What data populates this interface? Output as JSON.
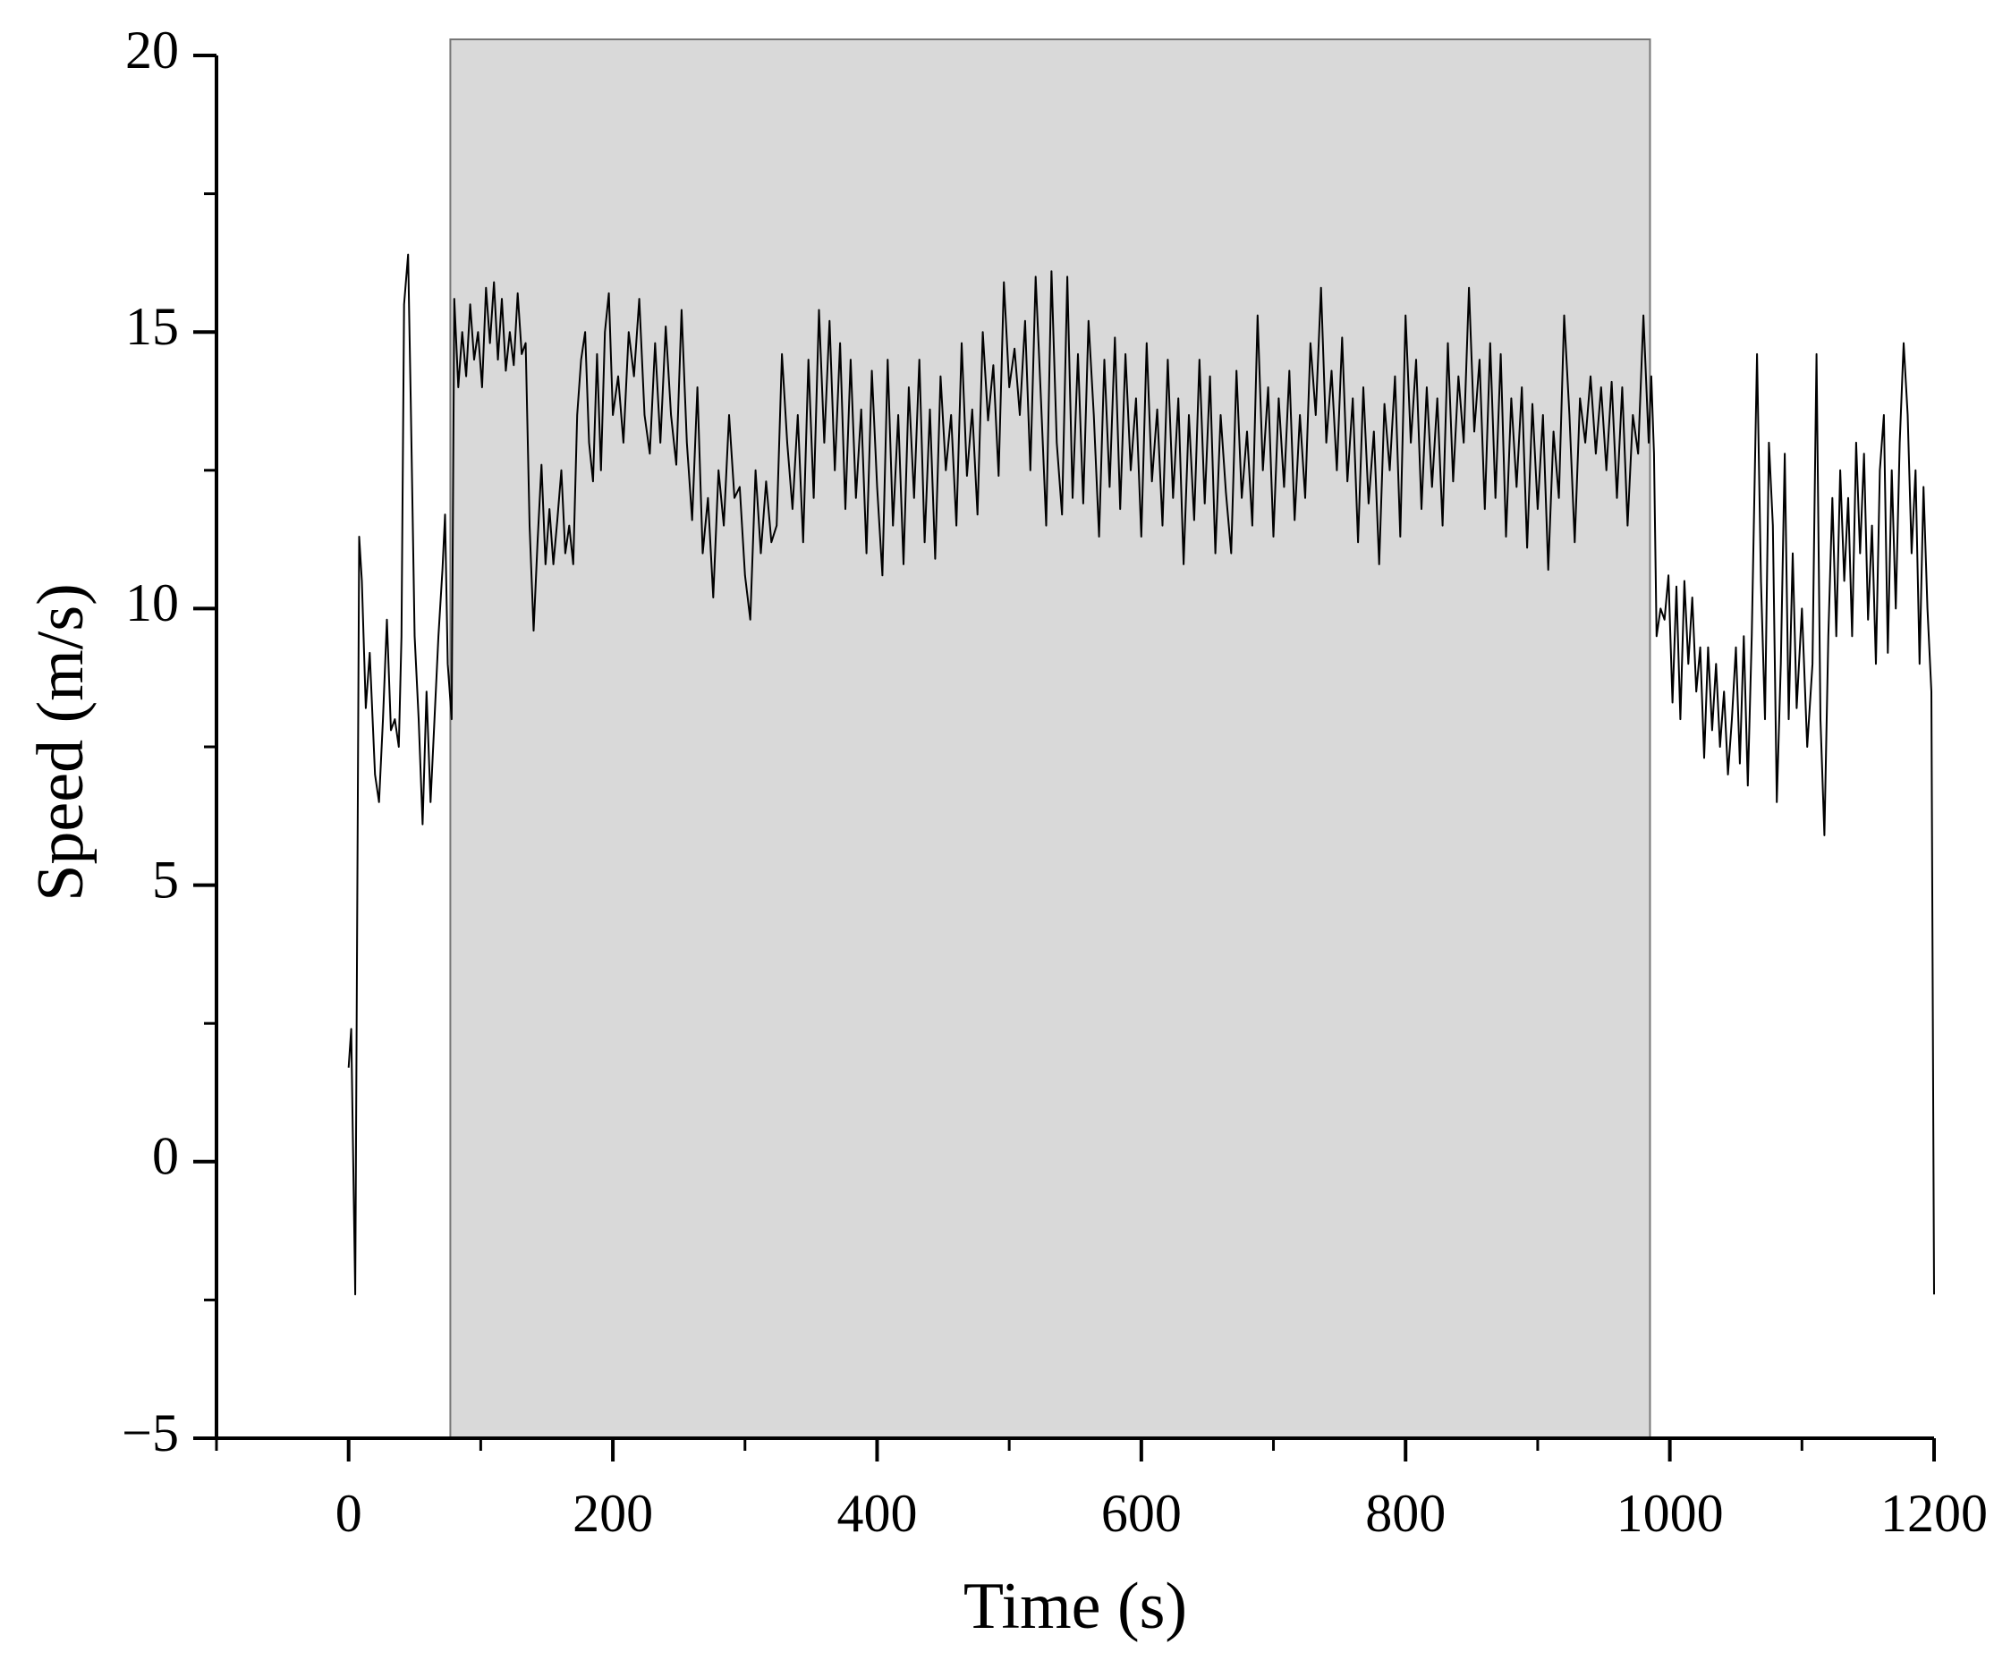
{
  "chart_data": {
    "type": "line",
    "x_label": "Time (s)",
    "y_label": "Speed (m/s)",
    "xlim": [
      -100,
      1200
    ],
    "ylim": [
      -5,
      20
    ],
    "xticks": [
      0,
      200,
      400,
      600,
      800,
      1000,
      1200
    ],
    "xminorticks": [
      -100,
      100,
      300,
      500,
      700,
      900,
      1100
    ],
    "yticks": [
      {
        "value": -5,
        "label": "−5"
      },
      0,
      5,
      10,
      15,
      20
    ],
    "yminorticks": [
      -2.5,
      2.5,
      7.5,
      12.5,
      17.5
    ],
    "shaded_region": {
      "x": [
        77,
        985
      ],
      "color": "#d9d9d9"
    },
    "x": [
      0,
      2,
      5,
      8,
      10,
      13,
      16,
      20,
      23,
      26,
      29,
      32,
      35,
      38,
      40,
      42,
      45,
      47,
      50,
      53,
      56,
      59,
      62,
      65,
      68,
      71,
      73,
      75,
      78,
      80,
      83,
      86,
      89,
      92,
      95,
      98,
      101,
      104,
      107,
      110,
      113,
      116,
      119,
      122,
      125,
      128,
      131,
      134,
      137,
      140,
      143,
      146,
      149,
      152,
      155,
      158,
      161,
      164,
      167,
      170,
      173,
      176,
      179,
      182,
      185,
      188,
      191,
      194,
      197,
      200,
      204,
      208,
      212,
      216,
      220,
      224,
      228,
      232,
      236,
      240,
      244,
      248,
      252,
      256,
      260,
      264,
      268,
      272,
      276,
      280,
      284,
      288,
      292,
      296,
      300,
      304,
      308,
      312,
      316,
      320,
      324,
      328,
      332,
      336,
      340,
      344,
      348,
      352,
      356,
      360,
      364,
      368,
      372,
      376,
      380,
      384,
      388,
      392,
      396,
      400,
      404,
      408,
      412,
      416,
      420,
      424,
      428,
      432,
      436,
      440,
      444,
      448,
      452,
      456,
      460,
      464,
      468,
      472,
      476,
      480,
      484,
      488,
      492,
      496,
      500,
      504,
      508,
      512,
      516,
      520,
      524,
      528,
      532,
      536,
      540,
      544,
      548,
      552,
      556,
      560,
      564,
      568,
      572,
      576,
      580,
      584,
      588,
      592,
      596,
      600,
      604,
      608,
      612,
      616,
      620,
      624,
      628,
      632,
      636,
      640,
      644,
      648,
      652,
      656,
      660,
      664,
      668,
      672,
      676,
      680,
      684,
      688,
      692,
      696,
      700,
      704,
      708,
      712,
      716,
      720,
      724,
      728,
      732,
      736,
      740,
      744,
      748,
      752,
      756,
      760,
      764,
      768,
      772,
      776,
      780,
      784,
      788,
      792,
      796,
      800,
      804,
      808,
      812,
      816,
      820,
      824,
      828,
      832,
      836,
      840,
      844,
      848,
      852,
      856,
      860,
      864,
      868,
      872,
      876,
      880,
      884,
      888,
      892,
      896,
      900,
      904,
      908,
      912,
      916,
      920,
      924,
      928,
      932,
      936,
      940,
      944,
      948,
      952,
      956,
      960,
      964,
      968,
      972,
      976,
      980,
      984,
      986,
      988,
      990,
      993,
      996,
      999,
      1002,
      1005,
      1008,
      1011,
      1014,
      1017,
      1020,
      1023,
      1026,
      1029,
      1032,
      1035,
      1038,
      1041,
      1044,
      1047,
      1050,
      1053,
      1056,
      1059,
      1062,
      1066,
      1069,
      1072,
      1075,
      1078,
      1081,
      1084,
      1087,
      1090,
      1093,
      1096,
      1100,
      1104,
      1108,
      1111,
      1114,
      1117,
      1120,
      1123,
      1126,
      1129,
      1132,
      1135,
      1138,
      1141,
      1144,
      1147,
      1150,
      1153,
      1156,
      1159,
      1162,
      1165,
      1168,
      1171,
      1174,
      1177,
      1180,
      1183,
      1186,
      1189,
      1192,
      1195,
      1198,
      1200
    ],
    "series": [
      {
        "color": "#000000",
        "values": [
          1.7,
          2.4,
          -2.4,
          11.3,
          10.5,
          8.2,
          9.2,
          7.0,
          6.5,
          8.0,
          9.8,
          7.8,
          8.0,
          7.5,
          9.5,
          15.5,
          16.4,
          13.8,
          9.5,
          8.0,
          6.1,
          8.5,
          6.5,
          8.0,
          9.5,
          10.7,
          11.7,
          9.0,
          8.0,
          15.6,
          14.0,
          15.0,
          14.2,
          15.5,
          14.5,
          15.0,
          14.0,
          15.8,
          14.8,
          15.9,
          14.5,
          15.6,
          14.3,
          15.0,
          14.4,
          15.7,
          14.6,
          14.8,
          11.5,
          9.6,
          11.2,
          12.6,
          10.8,
          11.8,
          10.8,
          11.6,
          12.5,
          11.0,
          11.5,
          10.8,
          13.5,
          14.5,
          15.0,
          13.0,
          12.3,
          14.6,
          12.5,
          15.0,
          15.7,
          13.5,
          14.2,
          13.0,
          15.0,
          14.2,
          15.6,
          13.5,
          12.8,
          14.8,
          13.0,
          15.1,
          13.5,
          12.6,
          15.4,
          13.0,
          11.6,
          14.0,
          11.0,
          12.0,
          10.2,
          12.5,
          11.5,
          13.5,
          12.0,
          12.2,
          10.6,
          9.8,
          12.5,
          11.0,
          12.3,
          11.2,
          11.5,
          14.6,
          13.0,
          11.8,
          13.5,
          11.2,
          14.5,
          12.0,
          15.4,
          13.0,
          15.2,
          12.5,
          14.8,
          11.8,
          14.5,
          12.0,
          13.6,
          11.0,
          14.3,
          12.2,
          10.6,
          14.5,
          11.5,
          13.5,
          10.8,
          14.0,
          12.0,
          14.5,
          11.2,
          13.6,
          10.9,
          14.2,
          12.5,
          13.5,
          11.5,
          14.8,
          12.4,
          13.6,
          11.7,
          15.0,
          13.4,
          14.4,
          12.4,
          15.9,
          14.0,
          14.7,
          13.5,
          15.2,
          12.5,
          16.0,
          13.8,
          11.5,
          16.1,
          13.0,
          11.7,
          16.0,
          12.0,
          14.6,
          11.9,
          15.2,
          13.5,
          11.3,
          14.5,
          12.2,
          14.9,
          11.8,
          14.6,
          12.5,
          13.8,
          11.3,
          14.8,
          12.3,
          13.6,
          11.5,
          14.5,
          12.0,
          13.8,
          10.8,
          13.5,
          11.6,
          14.5,
          11.9,
          14.2,
          11.0,
          13.5,
          12.1,
          11.0,
          14.3,
          12.0,
          13.2,
          11.5,
          15.3,
          12.5,
          14.0,
          11.3,
          13.8,
          12.2,
          14.3,
          11.6,
          13.5,
          12.0,
          14.8,
          13.5,
          15.8,
          13.0,
          14.3,
          12.5,
          14.9,
          12.3,
          13.8,
          11.2,
          14.0,
          11.9,
          13.2,
          10.8,
          13.7,
          12.5,
          14.2,
          11.3,
          15.3,
          13.0,
          14.5,
          11.8,
          14.0,
          12.2,
          13.8,
          11.5,
          14.8,
          12.3,
          14.2,
          13.0,
          15.8,
          13.2,
          14.5,
          11.8,
          14.8,
          12.0,
          14.6,
          11.3,
          13.8,
          12.2,
          14.0,
          11.1,
          13.7,
          11.8,
          13.5,
          10.7,
          13.2,
          12.0,
          15.3,
          13.5,
          11.2,
          13.8,
          13.0,
          14.2,
          12.8,
          14.0,
          12.5,
          14.1,
          12.0,
          14.0,
          11.5,
          13.5,
          12.8,
          15.3,
          13.0,
          14.2,
          12.8,
          9.5,
          10.0,
          9.8,
          10.6,
          8.3,
          10.4,
          8.0,
          10.5,
          9.0,
          10.2,
          8.5,
          9.3,
          7.3,
          9.3,
          7.8,
          9.0,
          7.5,
          8.5,
          7.0,
          8.0,
          9.3,
          7.2,
          9.5,
          6.8,
          9.5,
          14.6,
          10.5,
          8.0,
          13.0,
          11.5,
          6.5,
          9.0,
          12.8,
          8.0,
          11.0,
          8.2,
          10.0,
          7.5,
          9.0,
          14.6,
          8.0,
          5.9,
          9.5,
          12.0,
          9.5,
          12.5,
          10.5,
          12.0,
          9.5,
          13.0,
          11.0,
          12.8,
          9.8,
          11.5,
          9.0,
          12.5,
          13.5,
          9.2,
          12.5,
          10.0,
          13.0,
          14.8,
          13.5,
          11.0,
          12.5,
          9.0,
          12.2,
          10.0,
          8.5,
          -2.4
        ]
      }
    ]
  }
}
